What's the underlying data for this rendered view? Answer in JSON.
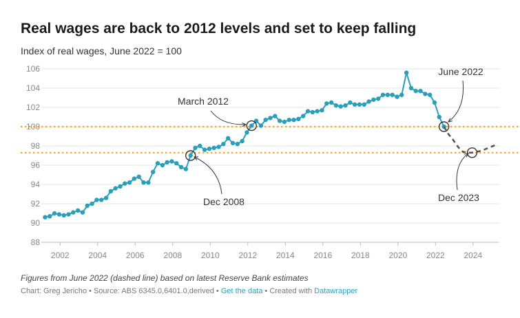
{
  "title": "Real wages are back to 2012 levels and set to keep falling",
  "subtitle": "Index of real wages, June 2022 = 100",
  "note": "Figures from June 2022 (dashed line) based on latest Reserve Bank estimates",
  "footer": {
    "prefix": "Chart: Greg Jericho • Source: ABS 6345.0,6401.0,derived • ",
    "data_link": "Get the data",
    "middle": " • Created with ",
    "tool_link": "Datawrapper"
  },
  "colors": {
    "line": "#2a9fbc",
    "forecast": "#555555",
    "reference": "#f3a53c",
    "grid": "#e6e6e6"
  },
  "chart_data": {
    "type": "line",
    "title": "Real wages are back to 2012 levels and set to keep falling",
    "ylabel": "Index of real wages, June 2022 = 100",
    "xlim": [
      2001,
      2025.4
    ],
    "ylim": [
      88,
      106
    ],
    "grid": true,
    "x_ticks": [
      2002,
      2004,
      2006,
      2008,
      2010,
      2012,
      2014,
      2016,
      2018,
      2020,
      2022,
      2024
    ],
    "y_ticks": [
      88,
      90,
      92,
      94,
      96,
      98,
      100,
      102,
      104,
      106
    ],
    "reference_lines": [
      100,
      97.3
    ],
    "series": [
      {
        "style": "solid",
        "x": [
          2001.2,
          2001.45,
          2001.7,
          2001.95,
          2002.2,
          2002.45,
          2002.7,
          2002.95,
          2003.2,
          2003.45,
          2003.7,
          2003.95,
          2004.2,
          2004.45,
          2004.7,
          2004.95,
          2005.2,
          2005.45,
          2005.7,
          2005.95,
          2006.2,
          2006.45,
          2006.7,
          2006.95,
          2007.2,
          2007.45,
          2007.7,
          2007.95,
          2008.2,
          2008.45,
          2008.7,
          2008.95,
          2009.2,
          2009.45,
          2009.7,
          2009.95,
          2010.2,
          2010.45,
          2010.7,
          2010.95,
          2011.2,
          2011.45,
          2011.7,
          2011.95,
          2012.2,
          2012.45,
          2012.7,
          2012.95,
          2013.2,
          2013.45,
          2013.7,
          2013.95,
          2014.2,
          2014.45,
          2014.7,
          2014.95,
          2015.2,
          2015.45,
          2015.7,
          2015.95,
          2016.2,
          2016.45,
          2016.7,
          2016.95,
          2017.2,
          2017.45,
          2017.7,
          2017.95,
          2018.2,
          2018.45,
          2018.7,
          2018.95,
          2019.2,
          2019.45,
          2019.7,
          2019.95,
          2020.2,
          2020.45,
          2020.7,
          2020.95,
          2021.2,
          2021.45,
          2021.7,
          2021.95,
          2022.2,
          2022.45
        ],
        "values": [
          90.6,
          90.7,
          91.0,
          90.9,
          90.8,
          90.9,
          91.1,
          91.3,
          91.1,
          91.8,
          92.0,
          92.4,
          92.4,
          92.6,
          93.3,
          93.6,
          93.8,
          94.1,
          94.2,
          94.6,
          94.8,
          94.2,
          94.2,
          95.3,
          96.2,
          96.0,
          96.3,
          96.4,
          96.2,
          95.8,
          95.6,
          97.0,
          97.8,
          98.0,
          97.6,
          97.7,
          97.8,
          97.9,
          98.2,
          98.8,
          98.3,
          98.2,
          98.5,
          99.4,
          100.1,
          100.6,
          100.1,
          100.7,
          100.9,
          101.1,
          100.6,
          100.5,
          100.7,
          100.7,
          100.8,
          101.1,
          101.6,
          101.5,
          101.6,
          101.7,
          102.4,
          102.5,
          102.2,
          102.1,
          102.2,
          102.5,
          102.3,
          102.3,
          102.3,
          102.6,
          102.8,
          102.9,
          103.3,
          103.3,
          103.3,
          103.1,
          103.3,
          105.6,
          104.0,
          103.7,
          103.7,
          103.4,
          103.3,
          102.5,
          101.0,
          100.0
        ]
      },
      {
        "style": "dashed",
        "x": [
          2022.45,
          2022.7,
          2022.95,
          2023.2,
          2023.45,
          2023.7,
          2023.95,
          2024.2,
          2024.45,
          2024.7,
          2024.95,
          2025.2
        ],
        "values": [
          100.0,
          99.2,
          98.6,
          97.9,
          97.4,
          97.3,
          97.3,
          97.4,
          97.5,
          97.7,
          97.9,
          98.1
        ]
      }
    ],
    "annotations": [
      {
        "label": "March 2012",
        "x": 2012.2,
        "y": 100.1
      },
      {
        "label": "Dec 2008",
        "x": 2008.95,
        "y": 97.0
      },
      {
        "label": "June 2022",
        "x": 2022.45,
        "y": 100.0
      },
      {
        "label": "Dec 2023",
        "x": 2023.95,
        "y": 97.3
      }
    ]
  }
}
